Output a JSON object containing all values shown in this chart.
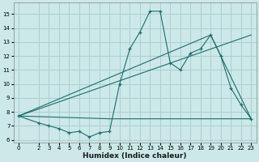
{
  "background_color": "#cce8e8",
  "grid_color": "#aacfcf",
  "line_color": "#1a6e6e",
  "marker": "+",
  "xlabel": "Humidex (Indice chaleur)",
  "xlim": [
    -0.5,
    23.5
  ],
  "ylim": [
    5.8,
    15.8
  ],
  "yticks": [
    6,
    7,
    8,
    9,
    10,
    11,
    12,
    13,
    14,
    15
  ],
  "xticks": [
    0,
    2,
    3,
    4,
    5,
    6,
    7,
    8,
    9,
    10,
    11,
    12,
    13,
    14,
    15,
    16,
    17,
    18,
    19,
    20,
    21,
    22,
    23
  ],
  "line1_x": [
    0,
    2,
    3,
    4,
    5,
    6,
    7,
    8,
    9,
    10,
    11,
    12,
    13,
    14,
    15,
    16,
    17,
    18,
    19,
    20,
    21,
    22,
    23
  ],
  "line1_y": [
    7.7,
    7.2,
    7.0,
    6.8,
    6.5,
    6.6,
    6.2,
    6.5,
    6.6,
    10.0,
    12.5,
    13.7,
    15.2,
    15.2,
    11.5,
    11.0,
    12.2,
    12.5,
    13.5,
    12.0,
    9.7,
    8.5,
    7.5
  ],
  "line2_x": [
    0,
    9,
    23
  ],
  "line2_y": [
    7.7,
    7.5,
    7.5
  ],
  "line3_x": [
    0,
    19,
    23
  ],
  "line3_y": [
    7.7,
    13.5,
    7.5
  ],
  "line4_x": [
    0,
    23
  ],
  "line4_y": [
    7.7,
    13.5
  ]
}
